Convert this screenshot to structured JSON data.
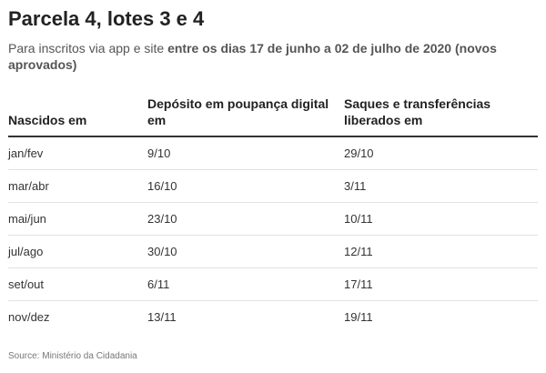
{
  "header": {
    "title": "Parcela 4, lotes 3 e 4",
    "subtitle_prefix": "Para inscritos via app e site ",
    "subtitle_bold": "entre os dias 17 de junho a 02 de julho de 2020 (novos aprovados)"
  },
  "table": {
    "columns": [
      "Nascidos em",
      "Depósito em poupança digital em",
      "Saques e transferências liberados em"
    ],
    "rows": [
      [
        "jan/fev",
        "9/10",
        "29/10"
      ],
      [
        "mar/abr",
        "16/10",
        "3/11"
      ],
      [
        "mai/jun",
        "23/10",
        "10/11"
      ],
      [
        "jul/ago",
        "30/10",
        "12/11"
      ],
      [
        "set/out",
        "6/11",
        "17/11"
      ],
      [
        "nov/dez",
        "13/11",
        "19/11"
      ]
    ]
  },
  "footer": {
    "source": "Source: Ministério da Cidadania"
  }
}
